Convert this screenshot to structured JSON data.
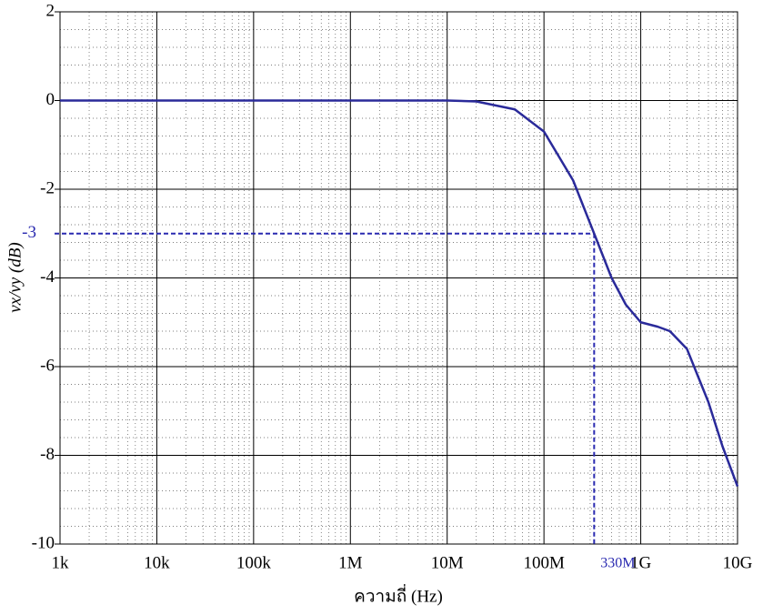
{
  "chart_data": {
    "type": "line",
    "xlabel": "ความถี่ (Hz)",
    "ylabel": "vx/vy (dB)",
    "log_x": true,
    "grid": true,
    "xlim": [
      1000,
      10000000000
    ],
    "ylim": [
      -10,
      2
    ],
    "xticks": [
      {
        "value": 1000,
        "label": "1k"
      },
      {
        "value": 10000,
        "label": "10k"
      },
      {
        "value": 100000,
        "label": "100k"
      },
      {
        "value": 1000000,
        "label": "1M"
      },
      {
        "value": 10000000,
        "label": "10M"
      },
      {
        "value": 100000000,
        "label": "100M"
      },
      {
        "value": 1000000000,
        "label": "1G"
      },
      {
        "value": 10000000000,
        "label": "10G"
      }
    ],
    "yticks": [
      -10,
      -8,
      -6,
      -4,
      -2,
      0,
      2
    ],
    "series": [
      {
        "color": "#2a2a9a",
        "x": [
          1000,
          1000000,
          10000000,
          20000000,
          50000000,
          100000000,
          200000000,
          330000000,
          500000000,
          700000000,
          1000000000,
          1500000000,
          2000000000,
          3000000000,
          5000000000,
          7000000000,
          10000000000
        ],
        "values": [
          0,
          0,
          0,
          -0.02,
          -0.2,
          -0.7,
          -1.8,
          -3,
          -4.0,
          -4.6,
          -5.0,
          -5.1,
          -5.2,
          -5.6,
          -6.8,
          -7.8,
          -8.7
        ]
      }
    ],
    "annotation_y": -3,
    "annotation_x": {
      "value": 330000000,
      "label": "330M"
    },
    "annotation_color": "#2a2ab0"
  }
}
